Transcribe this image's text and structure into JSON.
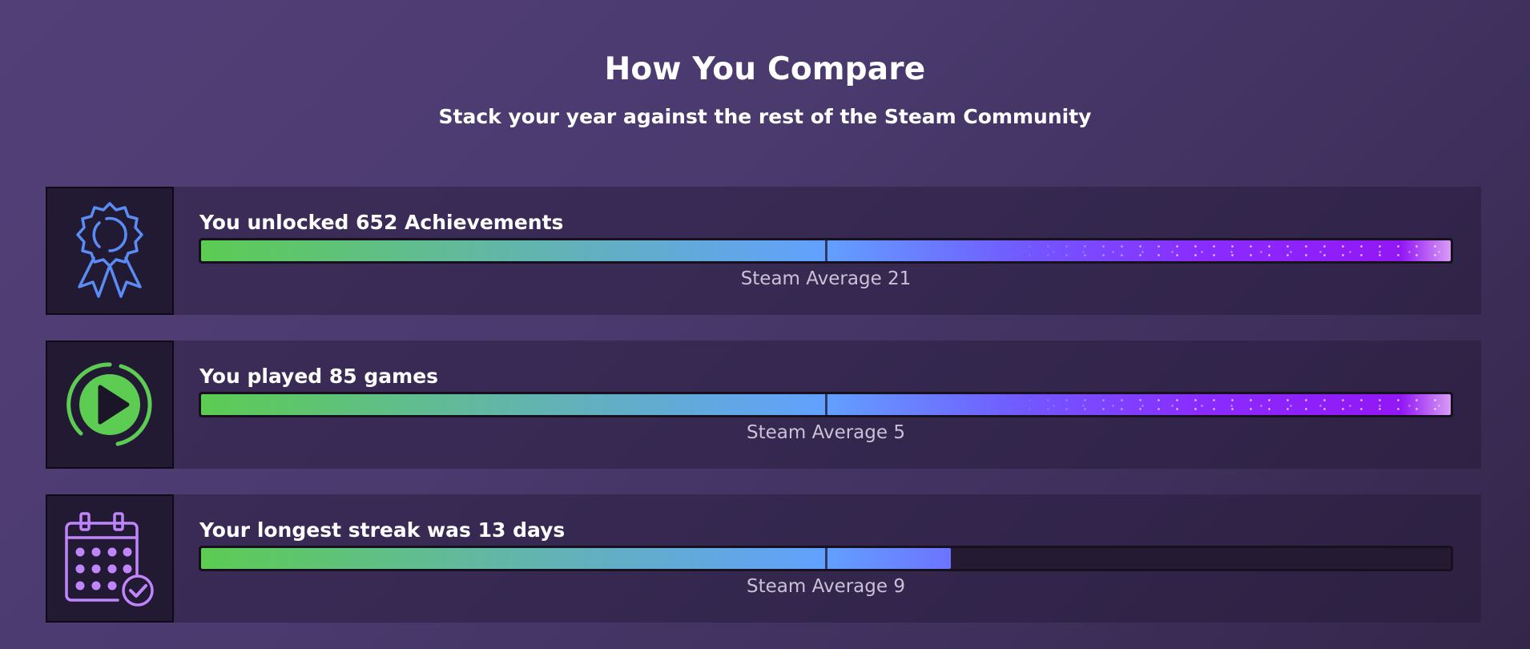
{
  "header": {
    "title": "How You Compare",
    "subtitle": "Stack your year against the rest of the Steam Community"
  },
  "stats": [
    {
      "icon": "achievement-ribbon-icon",
      "label": "You unlocked 652 Achievements",
      "average_prefix": "Steam Average",
      "average_value": "21",
      "fill_fraction": 1.0
    },
    {
      "icon": "play-circle-icon",
      "label": "You played 85 games",
      "average_prefix": "Steam Average",
      "average_value": "5",
      "fill_fraction": 1.0
    },
    {
      "icon": "calendar-check-icon",
      "label": "Your longest streak was 13 days",
      "average_prefix": "Steam Average",
      "average_value": "9",
      "fill_fraction": 0.6
    }
  ],
  "colors": {
    "achievement_icon": "#5b8cf5",
    "play_icon": "#5ccc52",
    "calendar_icon": "#c084fc"
  }
}
